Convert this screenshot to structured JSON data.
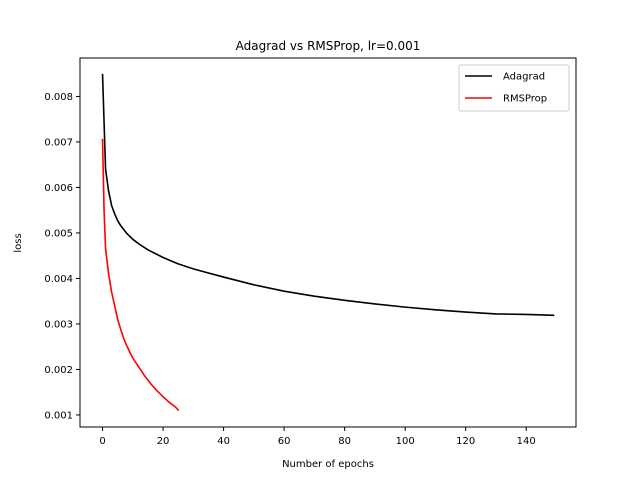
{
  "chart_data": {
    "type": "line",
    "title": "Adagrad vs RMSProp, lr=0.001",
    "xlabel": "Number of epochs",
    "ylabel": "loss",
    "xlim": [
      -7.45,
      156.45
    ],
    "ylim": [
      0.000735,
      0.008845
    ],
    "xticks": [
      0,
      20,
      40,
      60,
      80,
      100,
      120,
      140
    ],
    "yticks": [
      0.001,
      0.002,
      0.003,
      0.004,
      0.005,
      0.006,
      0.007,
      0.008
    ],
    "ytick_labels": [
      "0.001",
      "0.002",
      "0.003",
      "0.004",
      "0.005",
      "0.006",
      "0.007",
      "0.008"
    ],
    "legend_position": "upper right",
    "grid": false,
    "series": [
      {
        "name": "Adagrad",
        "color": "#000000",
        "x": [
          0,
          1,
          2,
          3,
          4,
          5,
          6,
          8,
          10,
          12,
          15,
          20,
          25,
          30,
          35,
          40,
          50,
          60,
          70,
          80,
          90,
          100,
          110,
          120,
          130,
          140,
          149
        ],
        "y": [
          0.00848,
          0.0064,
          0.00592,
          0.0056,
          0.00542,
          0.00527,
          0.00516,
          0.00499,
          0.00486,
          0.00476,
          0.00463,
          0.00446,
          0.00432,
          0.00421,
          0.00412,
          0.00403,
          0.00386,
          0.00372,
          0.00361,
          0.00352,
          0.00344,
          0.00337,
          0.00331,
          0.00326,
          0.00322,
          0.00321,
          0.00319
        ]
      },
      {
        "name": "RMSProp",
        "color": "#ff0000",
        "x": [
          0,
          0.5,
          1,
          2,
          3,
          4,
          5,
          6,
          7,
          8,
          9,
          10,
          12,
          14,
          16,
          18,
          20,
          22,
          24,
          25
        ],
        "y": [
          0.00705,
          0.0055,
          0.00465,
          0.0041,
          0.0037,
          0.0034,
          0.0031,
          0.00288,
          0.00268,
          0.00252,
          0.00238,
          0.00225,
          0.00205,
          0.00185,
          0.00168,
          0.00153,
          0.0014,
          0.00128,
          0.00118,
          0.00111
        ]
      }
    ]
  }
}
